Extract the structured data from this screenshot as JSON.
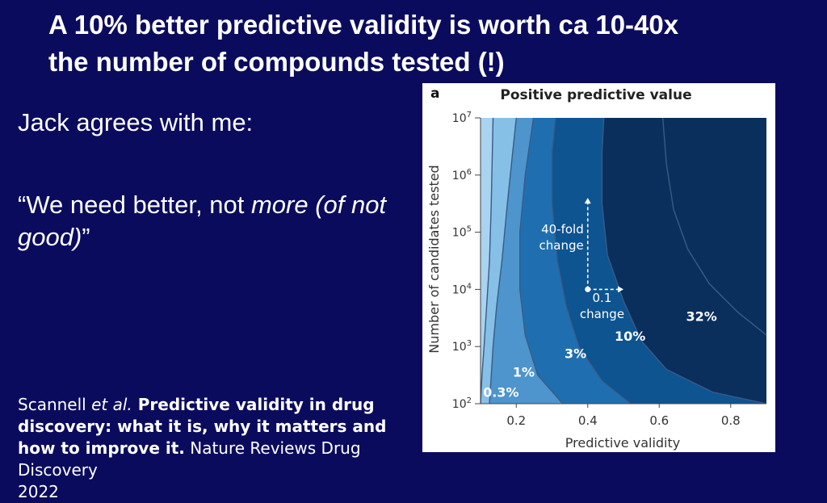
{
  "slide": {
    "title_line1": "A 10% better predictive validity is worth ca 10-40x",
    "title_line2": "the number of compounds tested (!)",
    "intro": "Jack agrees with me:",
    "quote": {
      "open": "“We need better, not ",
      "emphasis": "more (of not good)",
      "close": "”"
    },
    "reference": {
      "author": "Scannell ",
      "etal": "et al.",
      "title": " Predictive validity in drug discovery: what it is, why it matters and how to improve it.",
      "journal": " Nature Reviews Drug Discovery",
      "year": "2022"
    }
  },
  "chart_data": {
    "type": "heatmap",
    "panel_label": "a",
    "title": "Positive predictive value",
    "xlabel": "Predictive validity",
    "ylabel": "Number of candidates tested",
    "xlim": [
      0.1,
      0.9
    ],
    "ylim_log10": [
      2,
      7
    ],
    "x_ticks": [
      "0.2",
      "0.4",
      "0.6",
      "0.8"
    ],
    "y_ticks": [
      {
        "base": "10",
        "exp": "2"
      },
      {
        "base": "10",
        "exp": "3"
      },
      {
        "base": "10",
        "exp": "4"
      },
      {
        "base": "10",
        "exp": "5"
      },
      {
        "base": "10",
        "exp": "6"
      },
      {
        "base": "10",
        "exp": "7"
      }
    ],
    "regions": [
      {
        "label": "0.3%",
        "color": "#a9d3ef"
      },
      {
        "label": "1%",
        "color": "#86c0e6"
      },
      {
        "label": "3%",
        "color": "#4d95cc"
      },
      {
        "label": "10%",
        "color": "#1f6fb0"
      },
      {
        "label": "32%",
        "color": "#0d5490"
      },
      {
        "label": "",
        "color": "#0a2f5c"
      }
    ],
    "contours": [
      [
        [
          0.1,
          2.0
        ],
        [
          0.104,
          2.5
        ],
        [
          0.11,
          3.0
        ],
        [
          0.118,
          3.8
        ],
        [
          0.125,
          4.5
        ],
        [
          0.13,
          5.5
        ],
        [
          0.135,
          7.0
        ]
      ],
      [
        [
          0.125,
          2.0
        ],
        [
          0.135,
          3.0
        ],
        [
          0.145,
          3.7
        ],
        [
          0.16,
          4.5
        ],
        [
          0.175,
          5.5
        ],
        [
          0.19,
          6.4
        ],
        [
          0.2,
          7.0
        ]
      ],
      [
        [
          0.33,
          2.0
        ],
        [
          0.26,
          2.5
        ],
        [
          0.225,
          3.2
        ],
        [
          0.21,
          4.0
        ],
        [
          0.21,
          5.0
        ],
        [
          0.225,
          6.0
        ],
        [
          0.248,
          7.0
        ]
      ],
      [
        [
          0.52,
          2.0
        ],
        [
          0.44,
          2.4
        ],
        [
          0.375,
          3.0
        ],
        [
          0.34,
          3.7
        ],
        [
          0.315,
          4.5
        ],
        [
          0.3,
          5.5
        ],
        [
          0.3,
          6.4
        ],
        [
          0.31,
          7.0
        ]
      ],
      [
        [
          0.9,
          2.0
        ],
        [
          0.75,
          2.2
        ],
        [
          0.62,
          2.6
        ],
        [
          0.55,
          3.1
        ],
        [
          0.5,
          3.8
        ],
        [
          0.455,
          4.6
        ],
        [
          0.44,
          5.5
        ],
        [
          0.44,
          6.4
        ],
        [
          0.445,
          7.0
        ]
      ],
      [
        [
          0.9,
          3.2
        ],
        [
          0.82,
          3.6
        ],
        [
          0.74,
          4.1
        ],
        [
          0.68,
          4.7
        ],
        [
          0.64,
          5.4
        ],
        [
          0.62,
          6.2
        ],
        [
          0.61,
          7.0
        ]
      ]
    ],
    "region_labels": [
      {
        "text": "0.3%",
        "x": 0.107,
        "y": 2.12
      },
      {
        "text": "1%",
        "x": 0.19,
        "y": 2.47
      },
      {
        "text": "3%",
        "x": 0.335,
        "y": 2.8
      },
      {
        "text": "10%",
        "x": 0.475,
        "y": 3.1
      },
      {
        "text": "32%",
        "x": 0.675,
        "y": 3.45
      }
    ],
    "annotations": {
      "vertical": {
        "line1": "40-fold",
        "line2": "change",
        "x": 0.4,
        "y_from": 4.0,
        "y_to": 5.6
      },
      "horizontal": {
        "line1": "0.1",
        "line2": "change",
        "x_from": 0.4,
        "x_to": 0.5,
        "y": 4.0
      }
    }
  }
}
